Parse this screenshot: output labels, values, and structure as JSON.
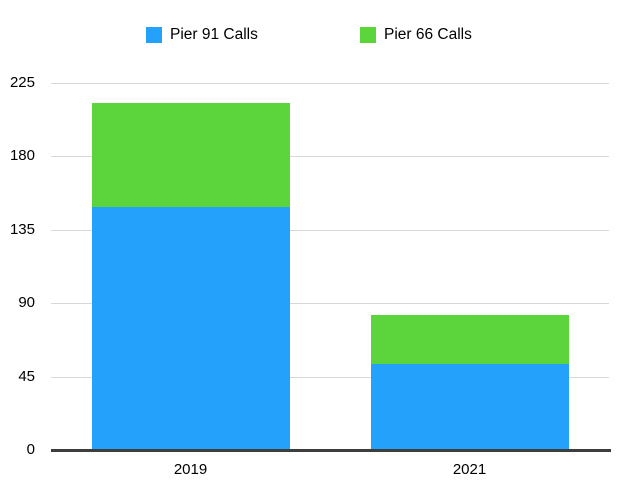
{
  "chart_data": {
    "type": "bar",
    "stacked": true,
    "categories": [
      "2019",
      "2021"
    ],
    "series": [
      {
        "name": "Pier 91 Calls",
        "color": "#24a1fa",
        "values": [
          149,
          53
        ]
      },
      {
        "name": "Pier 66 Calls",
        "color": "#5cd53c",
        "values": [
          64,
          30
        ]
      }
    ],
    "title": "",
    "xlabel": "",
    "ylabel": "",
    "ylim": [
      0,
      225
    ],
    "yticks": [
      0,
      45,
      90,
      135,
      180,
      225
    ],
    "grid": true,
    "legend_position": "top"
  },
  "colors": {
    "background": "#ffffff",
    "gridline": "#d8d8d8",
    "axis": "#3d3d3d",
    "text": "#000000"
  }
}
